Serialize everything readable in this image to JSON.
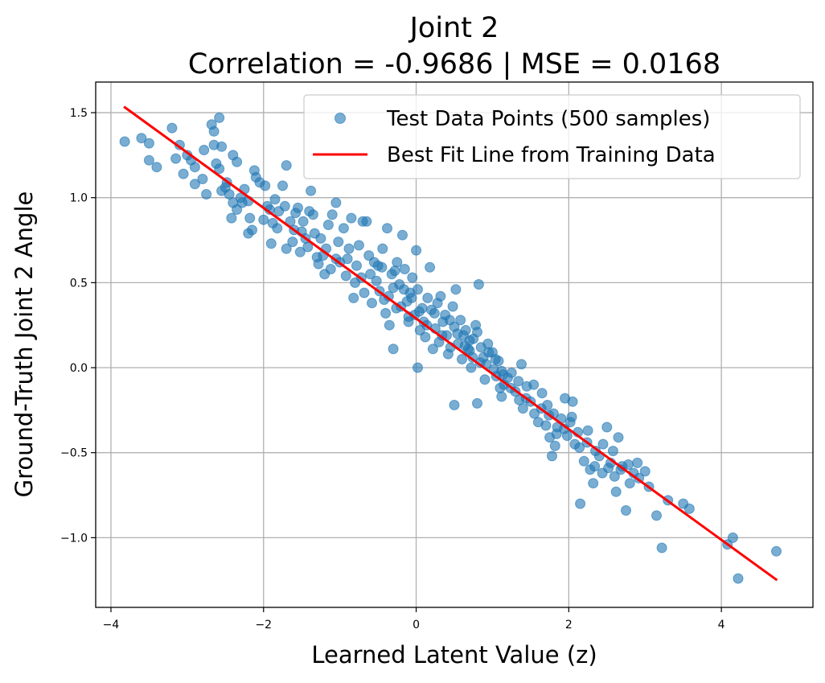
{
  "chart_data": {
    "type": "scatter",
    "title": "Joint 2",
    "subtitle": "Correlation = -0.9686 | MSE = 0.0168",
    "xlabel": "Learned Latent Value (z)",
    "ylabel": "Ground-Truth Joint 2 Angle",
    "xlim": [
      -4.2,
      5.2
    ],
    "ylim": [
      -1.41,
      1.68
    ],
    "x_ticks": [
      -4,
      -2,
      0,
      2,
      4
    ],
    "y_ticks": [
      -1.0,
      -0.5,
      0.0,
      0.5,
      1.0,
      1.5
    ],
    "x_tick_labels": [
      "−4",
      "−2",
      "0",
      "2",
      "4"
    ],
    "y_tick_labels": [
      "−1.0",
      "−0.5",
      "0.0",
      "0.5",
      "1.0",
      "1.5"
    ],
    "grid": true,
    "legend_position": "top-right",
    "series": [
      {
        "name": "Test Data Points (500 samples)",
        "kind": "scatter",
        "color": "#1f77b4",
        "alpha": 0.6,
        "points": [
          [
            -3.82,
            1.33
          ],
          [
            -3.6,
            1.35
          ],
          [
            -3.5,
            1.32
          ],
          [
            -3.5,
            1.22
          ],
          [
            -3.4,
            1.18
          ],
          [
            -3.2,
            1.41
          ],
          [
            -3.15,
            1.23
          ],
          [
            -3.1,
            1.31
          ],
          [
            -3.05,
            1.14
          ],
          [
            -2.95,
            1.22
          ],
          [
            -2.9,
            1.18
          ],
          [
            -2.8,
            1.11
          ],
          [
            -2.78,
            1.28
          ],
          [
            -2.75,
            1.02
          ],
          [
            -2.68,
            1.43
          ],
          [
            -2.65,
            1.39
          ],
          [
            -2.65,
            1.31
          ],
          [
            -2.58,
            1.47
          ],
          [
            -2.55,
            1.3
          ],
          [
            -2.58,
            1.17
          ],
          [
            -2.55,
            1.04
          ],
          [
            -2.5,
            1.06
          ],
          [
            -2.45,
            1.02
          ],
          [
            -2.4,
            1.25
          ],
          [
            -2.35,
            1.21
          ],
          [
            -2.4,
            0.97
          ],
          [
            -2.35,
            0.93
          ],
          [
            -2.3,
            1.0
          ],
          [
            -2.42,
            0.88
          ],
          [
            -2.28,
            0.97
          ],
          [
            -2.2,
            0.98
          ],
          [
            -2.2,
            0.79
          ],
          [
            -2.15,
            0.81
          ],
          [
            -2.18,
            0.88
          ],
          [
            -2.12,
            1.16
          ],
          [
            -2.05,
            1.09
          ],
          [
            -2.0,
            0.87
          ],
          [
            -1.98,
            1.07
          ],
          [
            -1.92,
            0.93
          ],
          [
            -1.9,
            0.73
          ],
          [
            -1.85,
            0.99
          ],
          [
            -1.82,
            0.82
          ],
          [
            -1.8,
            0.92
          ],
          [
            -1.75,
            1.07
          ],
          [
            -1.7,
            1.19
          ],
          [
            -1.65,
            0.86
          ],
          [
            -1.7,
            0.7
          ],
          [
            -1.62,
            0.74
          ],
          [
            -1.58,
            0.91
          ],
          [
            -1.55,
            0.94
          ],
          [
            -1.5,
            0.8
          ],
          [
            -1.48,
            0.86
          ],
          [
            -1.45,
            0.76
          ],
          [
            -1.4,
            0.92
          ],
          [
            -1.38,
            1.04
          ],
          [
            -1.35,
            0.9
          ],
          [
            -1.3,
            0.65
          ],
          [
            -1.28,
            0.61
          ],
          [
            -1.25,
            0.76
          ],
          [
            -1.2,
            0.55
          ],
          [
            -1.18,
            0.7
          ],
          [
            -1.15,
            0.84
          ],
          [
            -1.1,
            0.9
          ],
          [
            -1.05,
            0.64
          ],
          [
            -1.05,
            0.97
          ],
          [
            -1.0,
            0.62
          ],
          [
            -0.95,
            0.82
          ],
          [
            -0.9,
            0.64
          ],
          [
            -0.85,
            0.88
          ],
          [
            -0.82,
            0.41
          ],
          [
            -0.8,
            0.5
          ],
          [
            -0.75,
            0.72
          ],
          [
            -0.72,
            0.53
          ],
          [
            -0.7,
            0.86
          ],
          [
            -0.65,
            0.86
          ],
          [
            -0.6,
            0.55
          ],
          [
            -0.55,
            0.62
          ],
          [
            -0.5,
            0.6
          ],
          [
            -0.48,
            0.45
          ],
          [
            -0.45,
            0.59
          ],
          [
            -0.42,
            0.4
          ],
          [
            -0.4,
            0.32
          ],
          [
            -0.38,
            0.82
          ],
          [
            -0.35,
            0.25
          ],
          [
            -0.3,
            0.47
          ],
          [
            -0.28,
            0.57
          ],
          [
            -0.25,
            0.62
          ],
          [
            -0.22,
            0.49
          ],
          [
            -0.2,
            0.36
          ],
          [
            -0.18,
            0.78
          ],
          [
            -0.15,
            0.58
          ],
          [
            -0.12,
            0.39
          ],
          [
            -0.1,
            0.3
          ],
          [
            -0.08,
            0.44
          ],
          [
            -0.05,
            0.53
          ],
          [
            -0.02,
            0.31
          ],
          [
            0.0,
            0.69
          ],
          [
            0.02,
            0.46
          ],
          [
            0.05,
            0.22
          ],
          [
            0.08,
            0.35
          ],
          [
            0.1,
            0.27
          ],
          [
            0.12,
            0.18
          ],
          [
            0.15,
            0.41
          ],
          [
            0.18,
            0.59
          ],
          [
            0.2,
            0.34
          ],
          [
            0.22,
            0.11
          ],
          [
            0.25,
            0.23
          ],
          [
            0.28,
            0.38
          ],
          [
            0.3,
            0.15
          ],
          [
            0.32,
            0.42
          ],
          [
            0.35,
            0.27
          ],
          [
            0.38,
            0.31
          ],
          [
            0.4,
            0.19
          ],
          [
            0.42,
            0.08
          ],
          [
            0.45,
            0.12
          ],
          [
            0.48,
            0.36
          ],
          [
            0.5,
            0.24
          ],
          [
            0.52,
            0.46
          ],
          [
            0.55,
            0.14
          ],
          [
            0.58,
            0.28
          ],
          [
            0.6,
            0.05
          ],
          [
            0.62,
            0.19
          ],
          [
            0.65,
            0.22
          ],
          [
            0.68,
            0.11
          ],
          [
            0.7,
            0.16
          ],
          [
            0.72,
            0.0
          ],
          [
            0.75,
            0.17
          ],
          [
            0.78,
            0.25
          ],
          [
            0.8,
            0.21
          ],
          [
            0.82,
            0.49
          ],
          [
            0.85,
            0.12
          ],
          [
            0.88,
            0.06
          ],
          [
            0.9,
            -0.07
          ],
          [
            0.92,
            0.02
          ],
          [
            0.95,
            0.09
          ],
          [
            1.0,
            0.09
          ],
          [
            1.02,
            -0.01
          ],
          [
            1.05,
            -0.05
          ],
          [
            1.08,
            0.04
          ],
          [
            1.1,
            -0.12
          ],
          [
            1.12,
            -0.02
          ],
          [
            1.15,
            -0.1
          ],
          [
            1.2,
            -0.06
          ],
          [
            1.25,
            -0.03
          ],
          [
            1.3,
            -0.14
          ],
          [
            1.35,
            -0.19
          ],
          [
            1.38,
            0.02
          ],
          [
            1.4,
            -0.24
          ],
          [
            1.45,
            -0.11
          ],
          [
            1.5,
            -0.2
          ],
          [
            1.55,
            -0.27
          ],
          [
            1.6,
            -0.32
          ],
          [
            1.65,
            -0.15
          ],
          [
            1.7,
            -0.34
          ],
          [
            1.72,
            -0.22
          ],
          [
            1.75,
            -0.41
          ],
          [
            1.78,
            -0.52
          ],
          [
            1.8,
            -0.27
          ],
          [
            1.82,
            -0.46
          ],
          [
            1.85,
            -0.35
          ],
          [
            1.9,
            -0.3
          ],
          [
            1.95,
            -0.18
          ],
          [
            1.98,
            -0.4
          ],
          [
            2.02,
            -0.32
          ],
          [
            2.05,
            -0.2
          ],
          [
            2.08,
            -0.45
          ],
          [
            2.12,
            -0.38
          ],
          [
            2.15,
            -0.8
          ],
          [
            2.2,
            -0.55
          ],
          [
            2.25,
            -0.37
          ],
          [
            2.28,
            -0.6
          ],
          [
            2.32,
            -0.68
          ],
          [
            2.35,
            -0.49
          ],
          [
            2.4,
            -0.52
          ],
          [
            2.45,
            -0.45
          ],
          [
            2.5,
            -0.35
          ],
          [
            2.52,
            -0.59
          ],
          [
            2.55,
            -0.56
          ],
          [
            2.6,
            -0.64
          ],
          [
            2.62,
            -0.73
          ],
          [
            2.65,
            -0.41
          ],
          [
            2.7,
            -0.58
          ],
          [
            2.75,
            -0.84
          ],
          [
            2.8,
            -0.68
          ],
          [
            2.85,
            -0.62
          ],
          [
            2.9,
            -0.56
          ],
          [
            3.0,
            -0.61
          ],
          [
            3.05,
            -0.7
          ],
          [
            3.15,
            -0.87
          ],
          [
            3.22,
            -1.06
          ],
          [
            3.3,
            -0.78
          ],
          [
            3.5,
            -0.8
          ],
          [
            3.58,
            -0.83
          ],
          [
            4.08,
            -1.04
          ],
          [
            4.15,
            -1.0
          ],
          [
            4.22,
            -1.24
          ],
          [
            4.72,
            -1.08
          ],
          [
            -3.0,
            1.25
          ],
          [
            -2.9,
            1.08
          ],
          [
            -2.62,
            1.2
          ],
          [
            -2.48,
            1.09
          ],
          [
            -2.25,
            1.05
          ],
          [
            -2.1,
            1.12
          ],
          [
            -1.95,
            0.95
          ],
          [
            -1.88,
            0.85
          ],
          [
            -1.72,
            0.95
          ],
          [
            -1.6,
            0.81
          ],
          [
            -1.52,
            0.68
          ],
          [
            -1.42,
            0.71
          ],
          [
            -1.33,
            0.79
          ],
          [
            -1.22,
            0.66
          ],
          [
            -1.12,
            0.58
          ],
          [
            -1.02,
            0.74
          ],
          [
            -0.92,
            0.54
          ],
          [
            -0.88,
            0.7
          ],
          [
            -0.78,
            0.6
          ],
          [
            -0.68,
            0.44
          ],
          [
            -0.62,
            0.66
          ],
          [
            -0.58,
            0.38
          ],
          [
            -0.52,
            0.51
          ],
          [
            -0.44,
            0.7
          ],
          [
            -0.36,
            0.42
          ],
          [
            -0.32,
            0.55
          ],
          [
            -0.26,
            0.35
          ],
          [
            -0.16,
            0.46
          ],
          [
            -0.06,
            0.41
          ],
          [
            0.04,
            0.33
          ],
          [
            0.14,
            0.25
          ],
          [
            0.24,
            0.32
          ],
          [
            0.34,
            0.19
          ],
          [
            0.44,
            0.28
          ],
          [
            0.54,
            0.2
          ],
          [
            0.64,
            0.13
          ],
          [
            0.74,
            0.06
          ],
          [
            0.84,
            0.03
          ],
          [
            0.94,
            0.14
          ],
          [
            1.04,
            0.05
          ],
          [
            1.14,
            -0.04
          ],
          [
            1.24,
            -0.12
          ],
          [
            1.34,
            -0.08
          ],
          [
            1.44,
            -0.18
          ],
          [
            1.54,
            -0.1
          ],
          [
            1.64,
            -0.24
          ],
          [
            1.74,
            -0.28
          ],
          [
            1.84,
            -0.39
          ],
          [
            1.94,
            -0.36
          ],
          [
            2.04,
            -0.29
          ],
          [
            2.14,
            -0.47
          ],
          [
            2.24,
            -0.44
          ],
          [
            2.34,
            -0.58
          ],
          [
            2.44,
            -0.62
          ],
          [
            2.58,
            -0.49
          ],
          [
            2.68,
            -0.6
          ],
          [
            2.78,
            -0.57
          ],
          [
            2.92,
            -0.65
          ],
          [
            -0.3,
            0.11
          ],
          [
            0.02,
            0.0
          ],
          [
            0.5,
            -0.22
          ],
          [
            0.8,
            -0.21
          ],
          [
            1.12,
            -0.17
          ],
          [
            0.7,
            0.1
          ],
          [
            -0.1,
            0.27
          ]
        ]
      },
      {
        "name": "Best Fit Line from Training Data",
        "kind": "line",
        "color": "#ff0000",
        "x": [
          -3.83,
          4.73
        ],
        "y": [
          1.535,
          -1.25
        ]
      }
    ]
  }
}
